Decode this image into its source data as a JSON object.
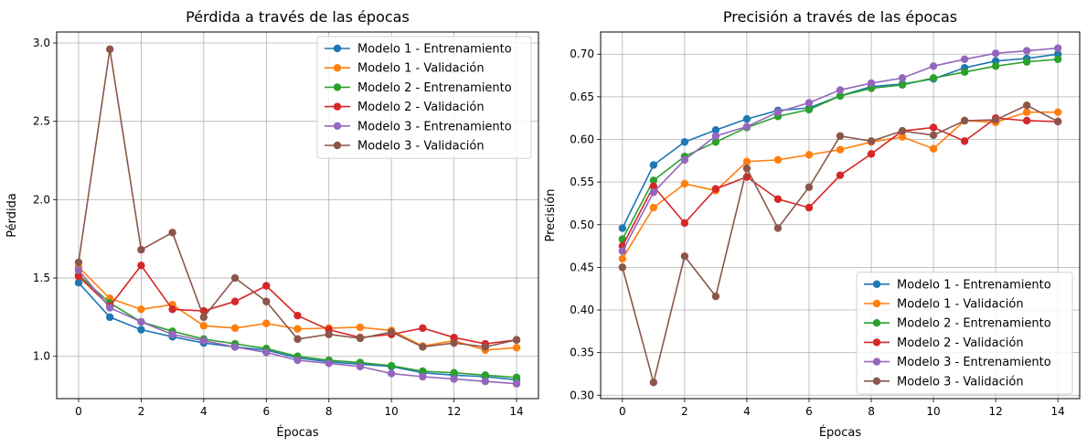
{
  "chart_data": [
    {
      "type": "line",
      "title": "Pérdida a través de las épocas",
      "xlabel": "Épocas",
      "ylabel": "Pérdida",
      "xlim": [
        -0.7,
        14.7
      ],
      "ylim": [
        0.73,
        3.07
      ],
      "xticks": [
        0,
        2,
        4,
        6,
        8,
        10,
        12,
        14
      ],
      "yticks": [
        1.0,
        1.5,
        2.0,
        2.5,
        3.0
      ],
      "ytick_labels": [
        "1.0",
        "1.5",
        "2.0",
        "2.5",
        "3.0"
      ],
      "grid": true,
      "legend_position": "top-right",
      "x": [
        0,
        1,
        2,
        3,
        4,
        5,
        6,
        7,
        8,
        9,
        10,
        11,
        12,
        13,
        14
      ],
      "series": [
        {
          "name": "Modelo 1 - Entrenamiento",
          "color": "#1f77b4",
          "values": [
            1.47,
            1.25,
            1.17,
            1.125,
            1.085,
            1.06,
            1.04,
            0.99,
            0.965,
            0.95,
            0.935,
            0.895,
            0.88,
            0.87,
            0.85
          ]
        },
        {
          "name": "Modelo 1 - Validación",
          "color": "#ff7f0e",
          "values": [
            1.57,
            1.37,
            1.3,
            1.33,
            1.195,
            1.18,
            1.21,
            1.175,
            1.18,
            1.185,
            1.165,
            1.065,
            1.1,
            1.04,
            1.055
          ]
        },
        {
          "name": "Modelo 2 - Entrenamiento",
          "color": "#2ca02c",
          "values": [
            1.52,
            1.34,
            1.22,
            1.16,
            1.11,
            1.08,
            1.05,
            1.0,
            0.975,
            0.96,
            0.94,
            0.905,
            0.895,
            0.88,
            0.865
          ]
        },
        {
          "name": "Modelo 2 - Validación",
          "color": "#d62728",
          "values": [
            1.51,
            1.32,
            1.58,
            1.3,
            1.29,
            1.35,
            1.45,
            1.26,
            1.17,
            1.12,
            1.14,
            1.18,
            1.12,
            1.08,
            1.105
          ]
        },
        {
          "name": "Modelo 3 - Entrenamiento",
          "color": "#9467bd",
          "values": [
            1.55,
            1.31,
            1.22,
            1.14,
            1.1,
            1.06,
            1.025,
            0.975,
            0.955,
            0.935,
            0.89,
            0.87,
            0.855,
            0.84,
            0.825
          ]
        },
        {
          "name": "Modelo 3 - Validación",
          "color": "#8c564b",
          "values": [
            1.6,
            2.96,
            1.68,
            1.79,
            1.25,
            1.5,
            1.35,
            1.11,
            1.14,
            1.115,
            1.155,
            1.06,
            1.085,
            1.06,
            1.105
          ]
        }
      ]
    },
    {
      "type": "line",
      "title": "Precisión a través de las épocas",
      "xlabel": "Épocas",
      "ylabel": "Precisión",
      "xlim": [
        -0.7,
        14.7
      ],
      "ylim": [
        0.296,
        0.726
      ],
      "xticks": [
        0,
        2,
        4,
        6,
        8,
        10,
        12,
        14
      ],
      "yticks": [
        0.3,
        0.35,
        0.4,
        0.45,
        0.5,
        0.55,
        0.6,
        0.65,
        0.7
      ],
      "ytick_labels": [
        "0.30",
        "0.35",
        "0.40",
        "0.45",
        "0.50",
        "0.55",
        "0.60",
        "0.65",
        "0.70"
      ],
      "grid": true,
      "legend_position": "bottom-right",
      "x": [
        0,
        1,
        2,
        3,
        4,
        5,
        6,
        7,
        8,
        9,
        10,
        11,
        12,
        13,
        14
      ],
      "series": [
        {
          "name": "Modelo 1 - Entrenamiento",
          "color": "#1f77b4",
          "values": [
            0.496,
            0.57,
            0.597,
            0.611,
            0.624,
            0.634,
            0.637,
            0.651,
            0.662,
            0.665,
            0.671,
            0.684,
            0.692,
            0.695,
            0.7
          ]
        },
        {
          "name": "Modelo 1 - Validación",
          "color": "#ff7f0e",
          "values": [
            0.46,
            0.52,
            0.548,
            0.54,
            0.574,
            0.576,
            0.582,
            0.588,
            0.597,
            0.603,
            0.589,
            0.622,
            0.62,
            0.632,
            0.632
          ]
        },
        {
          "name": "Modelo 2 - Entrenamiento",
          "color": "#2ca02c",
          "values": [
            0.483,
            0.552,
            0.58,
            0.597,
            0.614,
            0.627,
            0.635,
            0.651,
            0.66,
            0.664,
            0.672,
            0.679,
            0.686,
            0.691,
            0.694
          ]
        },
        {
          "name": "Modelo 2 - Validación",
          "color": "#d62728",
          "values": [
            0.475,
            0.545,
            0.502,
            0.542,
            0.556,
            0.53,
            0.52,
            0.558,
            0.583,
            0.61,
            0.614,
            0.598,
            0.625,
            0.622,
            0.621
          ]
        },
        {
          "name": "Modelo 3 - Entrenamiento",
          "color": "#9467bd",
          "values": [
            0.469,
            0.538,
            0.576,
            0.604,
            0.615,
            0.632,
            0.643,
            0.658,
            0.666,
            0.672,
            0.686,
            0.694,
            0.701,
            0.704,
            0.707
          ]
        },
        {
          "name": "Modelo 3 - Validación",
          "color": "#8c564b",
          "values": [
            0.45,
            0.315,
            0.463,
            0.416,
            0.566,
            0.496,
            0.544,
            0.604,
            0.598,
            0.61,
            0.605,
            0.622,
            0.623,
            0.64,
            0.621
          ]
        }
      ]
    }
  ]
}
